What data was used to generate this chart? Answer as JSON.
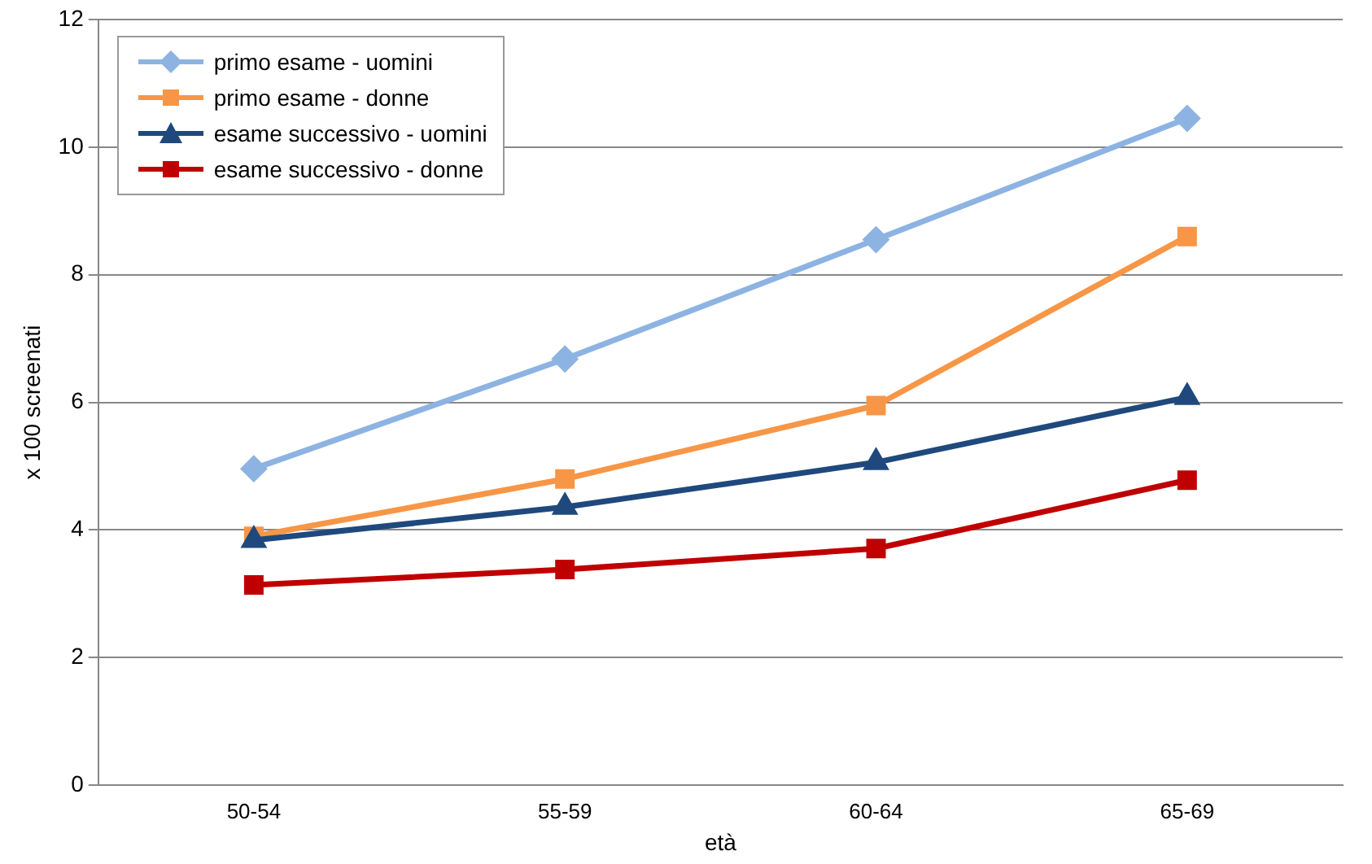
{
  "chart_data": {
    "type": "line",
    "xlabel": "età",
    "ylabel": "x 100 screenati",
    "categories": [
      "50-54",
      "55-59",
      "60-64",
      "65-69"
    ],
    "series": [
      {
        "name": "primo esame - uomini",
        "color": "#8db3e2",
        "marker": "diamond",
        "values": [
          4.96,
          6.68,
          8.55,
          10.45
        ]
      },
      {
        "name": "primo esame - donne",
        "color": "#f79646",
        "marker": "square",
        "values": [
          3.9,
          4.8,
          5.95,
          8.6
        ]
      },
      {
        "name": "esame successivo - uomini",
        "color": "#1f497d",
        "marker": "triangle",
        "values": [
          3.84,
          4.36,
          5.06,
          6.08
        ]
      },
      {
        "name": "esame successivo - donne",
        "color": "#c00000",
        "marker": "square",
        "values": [
          3.14,
          3.38,
          3.71,
          4.78
        ]
      }
    ],
    "ylim": [
      0,
      12
    ],
    "yticks": [
      0,
      2,
      4,
      6,
      8,
      10,
      12
    ],
    "grid": "y",
    "legend": "top left",
    "line_style": "solid"
  }
}
